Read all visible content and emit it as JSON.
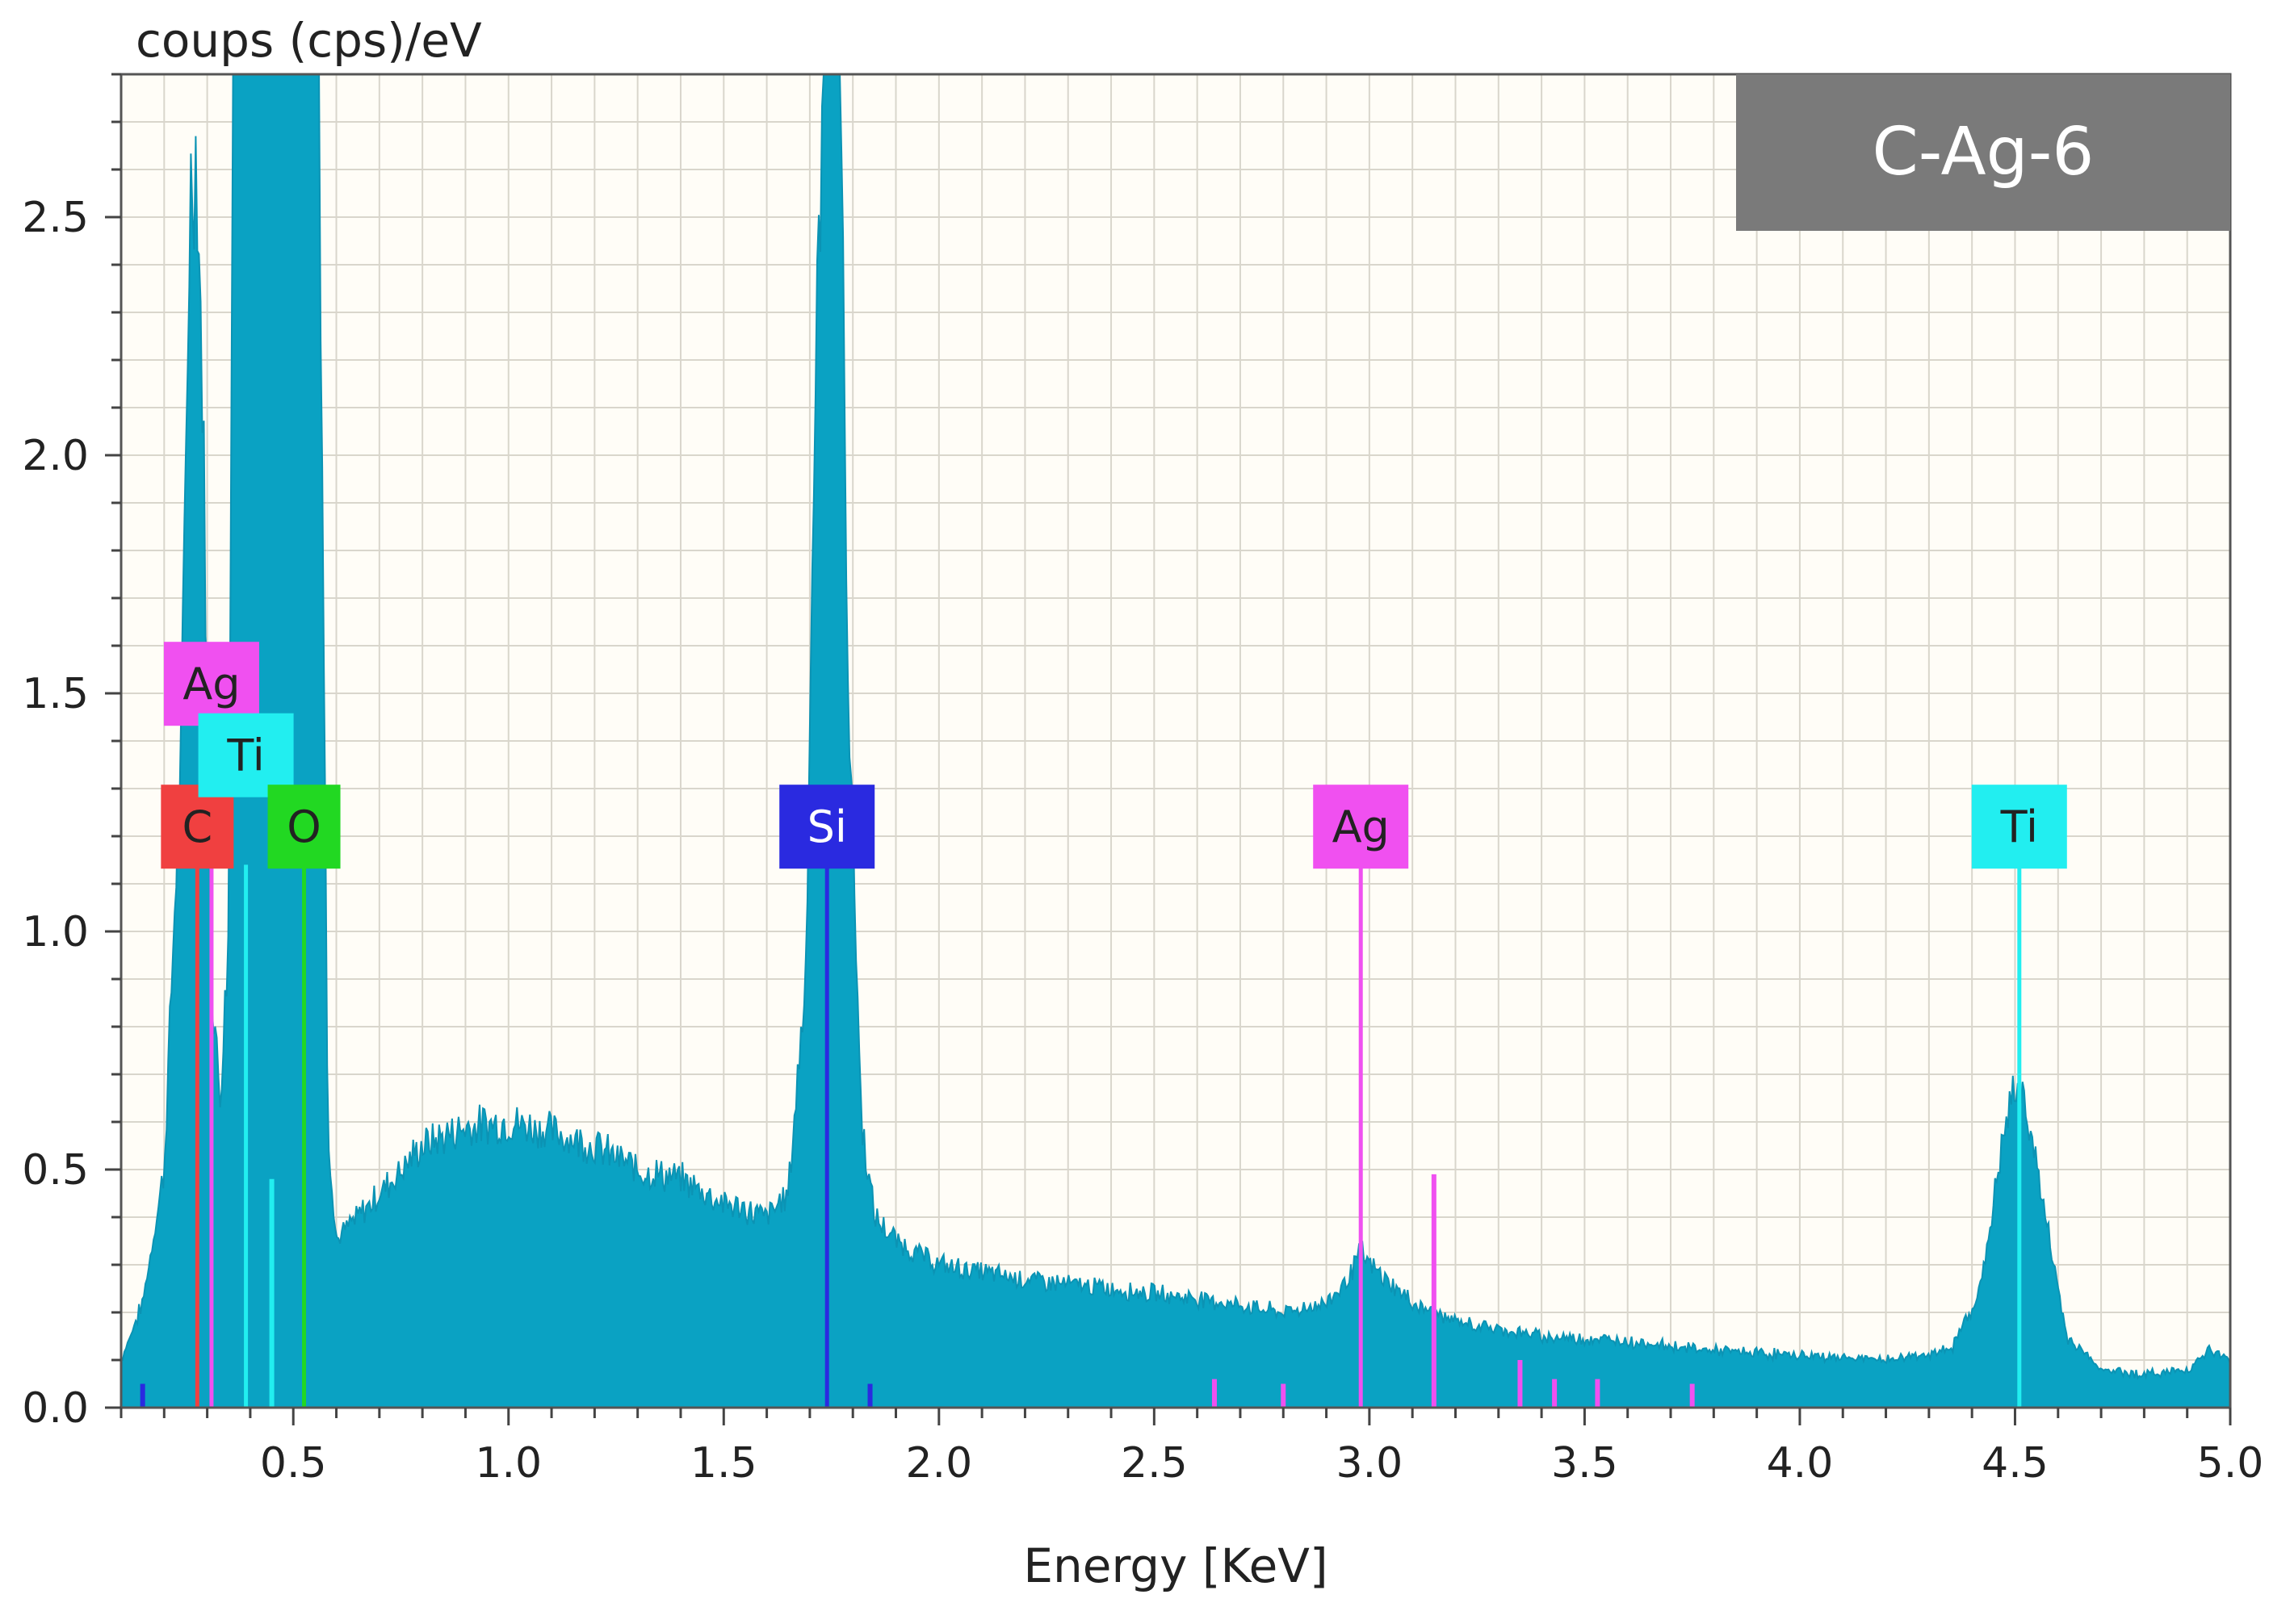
{
  "chart_data": {
    "type": "area",
    "title": "",
    "sample_label": "C-Ag-6",
    "ylabel": "coups (cps)/eV",
    "xlabel": "Energy [KeV]",
    "xlim": [
      0.1,
      5.0
    ],
    "ylim": [
      0.0,
      2.8
    ],
    "x_ticks": [
      "0.5",
      "1.0",
      "1.5",
      "2.0",
      "2.5",
      "3.0",
      "3.5",
      "4.0",
      "4.5",
      "5.0"
    ],
    "y_ticks": [
      "0.0",
      "0.5",
      "1.0",
      "1.5",
      "2.0",
      "2.5"
    ],
    "grid": true,
    "colors": {
      "spectrum": "#0aa2c3",
      "grid": "#d9d6cc",
      "plot_bg": "#fffdf7",
      "sample_box": "#7a7a7a",
      "C": "#f04040",
      "O": "#22d822",
      "Si": "#2a2ae0",
      "Ag": "#f050f0",
      "Ti": "#22eef0"
    },
    "series": [
      {
        "name": "spectrum",
        "x": [
          0.1,
          0.15,
          0.2,
          0.24,
          0.26,
          0.275,
          0.29,
          0.31,
          0.33,
          0.35,
          0.36,
          0.38,
          0.4,
          0.45,
          0.5,
          0.53,
          0.56,
          0.58,
          0.6,
          0.65,
          0.7,
          0.8,
          0.9,
          1.0,
          1.1,
          1.2,
          1.3,
          1.4,
          1.5,
          1.6,
          1.65,
          1.69,
          1.71,
          1.73,
          1.75,
          1.77,
          1.79,
          1.82,
          1.85,
          1.9,
          2.0,
          2.2,
          2.4,
          2.6,
          2.8,
          2.9,
          2.95,
          2.98,
          3.0,
          3.05,
          3.1,
          3.2,
          3.4,
          3.6,
          3.8,
          4.0,
          4.2,
          4.35,
          4.42,
          4.47,
          4.5,
          4.53,
          4.57,
          4.62,
          4.7,
          4.8,
          4.9,
          4.95,
          5.0
        ],
        "y": [
          0.1,
          0.22,
          0.5,
          1.4,
          2.55,
          2.65,
          2.1,
          0.9,
          0.65,
          1.0,
          2.8,
          2.8,
          2.8,
          2.8,
          2.8,
          2.8,
          2.8,
          0.6,
          0.35,
          0.4,
          0.45,
          0.55,
          0.59,
          0.6,
          0.58,
          0.55,
          0.5,
          0.48,
          0.43,
          0.4,
          0.45,
          0.9,
          2.0,
          2.8,
          2.8,
          2.8,
          1.5,
          0.6,
          0.4,
          0.35,
          0.3,
          0.27,
          0.25,
          0.23,
          0.2,
          0.22,
          0.27,
          0.33,
          0.3,
          0.26,
          0.22,
          0.18,
          0.15,
          0.14,
          0.12,
          0.11,
          0.1,
          0.12,
          0.25,
          0.55,
          0.68,
          0.62,
          0.4,
          0.15,
          0.08,
          0.07,
          0.08,
          0.12,
          0.1
        ]
      }
    ],
    "element_markers": [
      {
        "label": "C",
        "energy": 0.277,
        "height": 1.14,
        "label_level": 1.22,
        "color": "#f04040"
      },
      {
        "label": "Ag",
        "energy": 0.31,
        "height": 1.14,
        "label_level": 1.52,
        "color": "#f050f0"
      },
      {
        "label": "Ti",
        "energy": 0.39,
        "height": 1.14,
        "label_level": 1.37,
        "color": "#22eef0"
      },
      {
        "label": "O",
        "energy": 0.525,
        "height": 1.14,
        "label_level": 1.22,
        "color": "#22d822"
      },
      {
        "label": "Si",
        "energy": 1.74,
        "height": 1.14,
        "label_level": 1.22,
        "color": "#2a2ae0"
      },
      {
        "label": "Ag",
        "energy": 2.98,
        "height": 1.14,
        "label_level": 1.22,
        "color": "#f050f0"
      },
      {
        "label": "Ti",
        "energy": 4.51,
        "height": 1.14,
        "label_level": 1.22,
        "color": "#22eef0"
      }
    ],
    "minor_lines": [
      {
        "energy": 0.45,
        "height": 0.48,
        "color": "#22eef0"
      },
      {
        "energy": 3.15,
        "height": 0.49,
        "color": "#f050f0"
      },
      {
        "energy": 2.64,
        "height": 0.06,
        "color": "#f050f0"
      },
      {
        "energy": 2.8,
        "height": 0.05,
        "color": "#f050f0"
      },
      {
        "energy": 3.35,
        "height": 0.1,
        "color": "#f050f0"
      },
      {
        "energy": 3.43,
        "height": 0.06,
        "color": "#f050f0"
      },
      {
        "energy": 3.53,
        "height": 0.06,
        "color": "#f050f0"
      },
      {
        "energy": 3.75,
        "height": 0.05,
        "color": "#f050f0"
      },
      {
        "energy": 0.15,
        "height": 0.05,
        "color": "#2a2ae0"
      },
      {
        "energy": 1.84,
        "height": 0.05,
        "color": "#2a2ae0"
      }
    ]
  }
}
